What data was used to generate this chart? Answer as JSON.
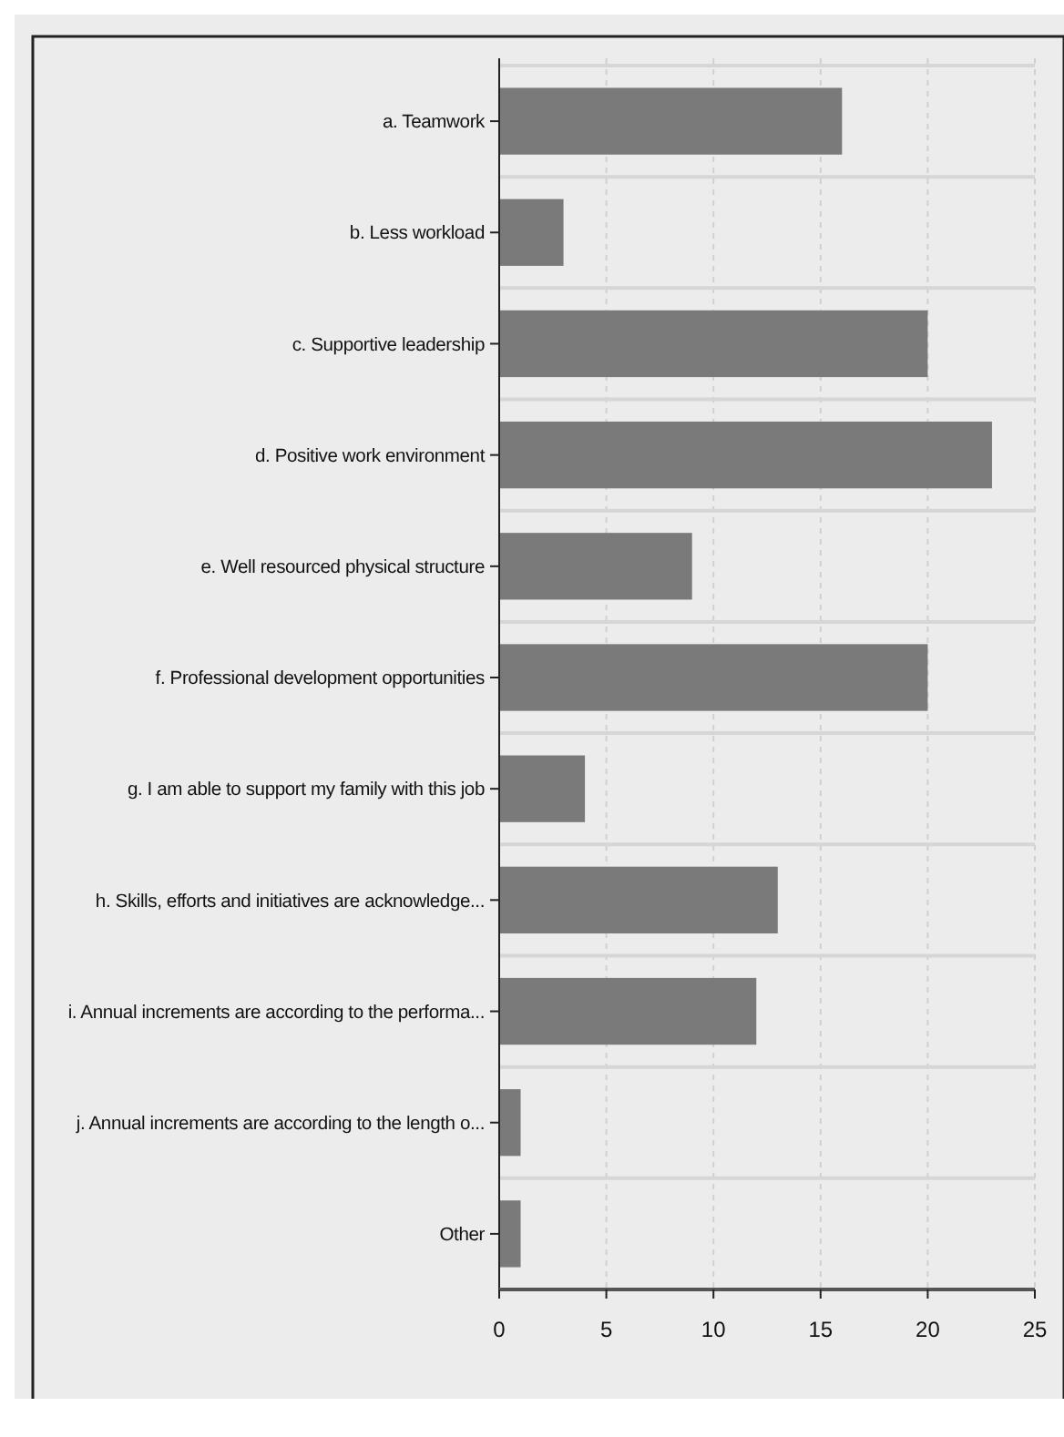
{
  "chart_data": {
    "type": "bar",
    "orientation": "horizontal",
    "categories": [
      "a. Teamwork",
      "b. Less workload",
      "c. Supportive leadership",
      "d. Positive work environment",
      "e. Well resourced physical structure",
      "f. Professional development opportunities",
      "g. I am able to support my family with this job",
      "h. Skills, efforts and initiatives are acknowledge...",
      "i. Annual increments are according to the performa...",
      "j. Annual increments are according to the length o...",
      "Other"
    ],
    "values": [
      16,
      3,
      20,
      23,
      9,
      20,
      4,
      13,
      12,
      1,
      1
    ],
    "color": "#7a7a7a",
    "xlim": [
      0,
      25
    ],
    "xticks": [
      0,
      5,
      10,
      15,
      20,
      25
    ],
    "grid": true
  }
}
